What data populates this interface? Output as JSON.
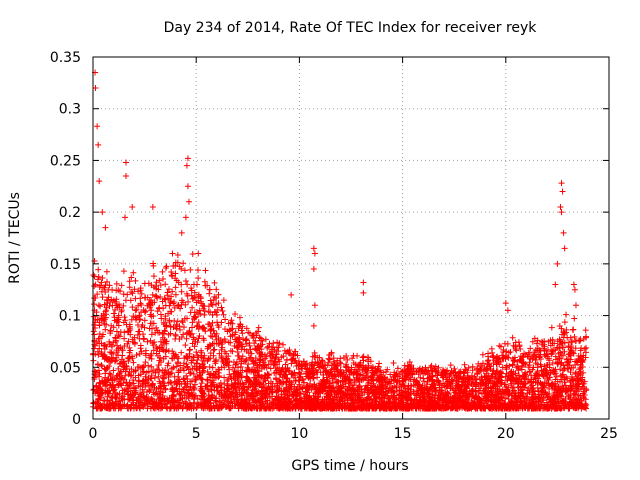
{
  "chart_data": {
    "type": "scatter",
    "title": "Day 234 of 2014, Rate Of TEC Index for receiver reyk",
    "xlabel": "GPS time / hours",
    "ylabel": "ROTI / TECUs",
    "xlim": [
      0,
      25
    ],
    "ylim": [
      0,
      0.35
    ],
    "xticks": [
      0,
      5,
      10,
      15,
      20,
      25
    ],
    "yticks": [
      0,
      0.05,
      0.1,
      0.15,
      0.2,
      0.25,
      0.3,
      0.35
    ],
    "xtick_labels": [
      "0",
      "5",
      "10",
      "15",
      "20",
      "25"
    ],
    "ytick_labels": [
      "0",
      "0.05",
      "0.1",
      "0.15",
      "0.2",
      "0.25",
      "0.3",
      "0.35"
    ],
    "grid": true,
    "marker": "+",
    "color": "#ff0000",
    "x_range_hours": [
      0,
      23.9
    ],
    "envelope": {
      "hours": [
        0,
        0.5,
        1,
        2,
        3,
        4,
        4.5,
        5,
        6,
        7,
        8,
        9,
        10,
        11,
        12,
        13,
        14,
        15,
        16,
        17,
        18,
        19,
        20,
        21,
        22,
        22.5,
        23,
        23.9
      ],
      "typical_max": [
        0.15,
        0.14,
        0.13,
        0.13,
        0.14,
        0.15,
        0.16,
        0.14,
        0.12,
        0.09,
        0.08,
        0.07,
        0.06,
        0.06,
        0.06,
        0.06,
        0.05,
        0.05,
        0.05,
        0.05,
        0.05,
        0.06,
        0.07,
        0.07,
        0.08,
        0.09,
        0.09,
        0.08
      ],
      "typical_min": [
        0.01,
        0.01,
        0.01,
        0.01,
        0.01,
        0.01,
        0.01,
        0.01,
        0.01,
        0.01,
        0.01,
        0.01,
        0.01,
        0.01,
        0.01,
        0.01,
        0.01,
        0.01,
        0.01,
        0.01,
        0.01,
        0.01,
        0.01,
        0.01,
        0.01,
        0.01,
        0.01,
        0.01
      ]
    },
    "spikes": [
      {
        "x": 0.1,
        "y": 0.335
      },
      {
        "x": 0.12,
        "y": 0.32
      },
      {
        "x": 0.2,
        "y": 0.283
      },
      {
        "x": 0.25,
        "y": 0.265
      },
      {
        "x": 0.3,
        "y": 0.23
      },
      {
        "x": 0.45,
        "y": 0.2
      },
      {
        "x": 0.6,
        "y": 0.185
      },
      {
        "x": 1.6,
        "y": 0.248
      },
      {
        "x": 1.6,
        "y": 0.235
      },
      {
        "x": 1.55,
        "y": 0.195
      },
      {
        "x": 1.9,
        "y": 0.205
      },
      {
        "x": 2.9,
        "y": 0.205
      },
      {
        "x": 4.6,
        "y": 0.252
      },
      {
        "x": 4.55,
        "y": 0.245
      },
      {
        "x": 4.6,
        "y": 0.225
      },
      {
        "x": 4.65,
        "y": 0.21
      },
      {
        "x": 4.5,
        "y": 0.195
      },
      {
        "x": 4.3,
        "y": 0.18
      },
      {
        "x": 5.1,
        "y": 0.16
      },
      {
        "x": 9.6,
        "y": 0.12
      },
      {
        "x": 10.7,
        "y": 0.165
      },
      {
        "x": 10.75,
        "y": 0.16
      },
      {
        "x": 10.7,
        "y": 0.145
      },
      {
        "x": 10.75,
        "y": 0.11
      },
      {
        "x": 10.7,
        "y": 0.09
      },
      {
        "x": 13.1,
        "y": 0.132
      },
      {
        "x": 13.1,
        "y": 0.122
      },
      {
        "x": 20.0,
        "y": 0.112
      },
      {
        "x": 20.1,
        "y": 0.105
      },
      {
        "x": 22.7,
        "y": 0.228
      },
      {
        "x": 22.75,
        "y": 0.22
      },
      {
        "x": 22.65,
        "y": 0.205
      },
      {
        "x": 22.7,
        "y": 0.2
      },
      {
        "x": 22.8,
        "y": 0.18
      },
      {
        "x": 22.85,
        "y": 0.165
      },
      {
        "x": 22.5,
        "y": 0.15
      },
      {
        "x": 22.4,
        "y": 0.13
      },
      {
        "x": 23.3,
        "y": 0.13
      },
      {
        "x": 23.35,
        "y": 0.125
      },
      {
        "x": 23.4,
        "y": 0.11
      }
    ]
  }
}
